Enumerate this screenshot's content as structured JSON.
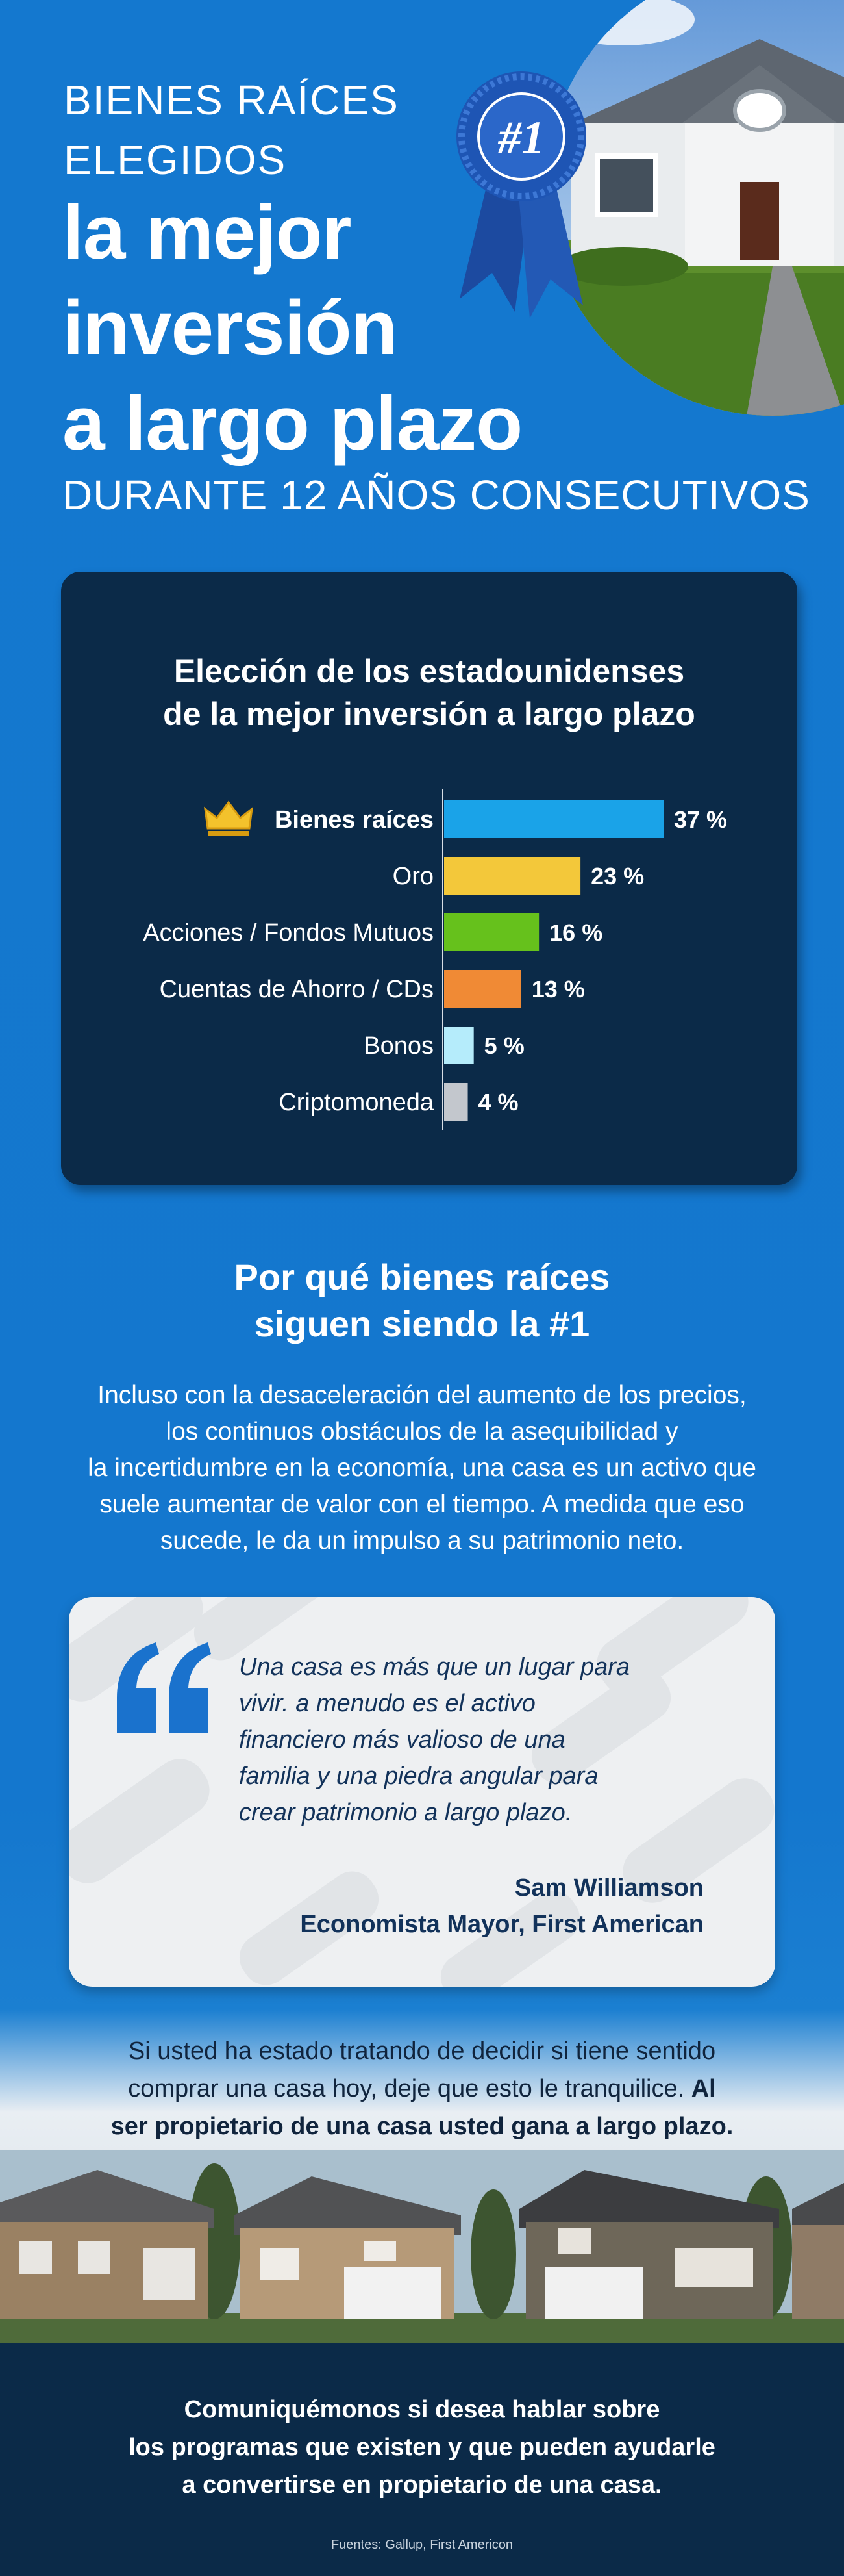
{
  "hero": {
    "kicker_line1": "BIENES RAÍCES",
    "kicker_line2": "ELEGIDOS",
    "title_line1": "la mejor",
    "title_line2": "inversión",
    "title_line3": "a largo plazo",
    "subtitle": "DURANTE 12 AÑOS CONSECUTIVOS",
    "ribbon_text": "#1"
  },
  "chart": {
    "title_line1": "Elección de los estadounidenses",
    "title_line2": "de la mejor inversión a largo plazo"
  },
  "chart_data": {
    "type": "bar",
    "orientation": "horizontal",
    "title": "Elección de los estadounidenses de la mejor inversión a largo plazo",
    "categories": [
      "Bienes raíces",
      "Oro",
      "Acciones / Fondos Mutuos",
      "Cuentas de Ahorro / CDs",
      "Bonos",
      "Criptomoneda"
    ],
    "values": [
      37,
      23,
      16,
      13,
      5,
      4
    ],
    "value_labels": [
      "37 %",
      "23 %",
      "16 %",
      "13 %",
      "5 %",
      "4 %"
    ],
    "colors": [
      "#1aa3e8",
      "#f3c83a",
      "#66c11c",
      "#f08a35",
      "#b5ecfb",
      "#c3c7cd"
    ],
    "highlight_icon": "crown-icon",
    "xlim": [
      0,
      37
    ]
  },
  "why": {
    "title_line1": "Por qué bienes raíces",
    "title_line2": "siguen siendo la #1",
    "body_line1": "Incluso con la desaceleración del aumento de los precios,",
    "body_line2": "los continuos obstáculos de la asequibilidad y",
    "body_line3": "la incertidumbre en la economía, una casa es un activo que",
    "body_line4": "suele aumentar de valor con el tiempo. A medida que eso",
    "body_line5": "sucede, le da un impulso a su patrimonio neto."
  },
  "quote": {
    "line1": "Una casa es más que un lugar para",
    "line2": "vivir. a menudo es el activo",
    "line3": "financiero más valioso de una",
    "line4": "familia y una piedra angular para",
    "line5": "crear patrimonio a largo plazo.",
    "author": "Sam Williamson",
    "role": "Economista Mayor, First American"
  },
  "closing": {
    "line1": "Si usted ha estado tratando de decidir si tiene sentido",
    "line2_plain": "comprar una casa hoy, deje que esto le tranquilice. ",
    "line2_bold": "Al",
    "line3_bold": "ser propietario de una casa usted gana a largo plazo."
  },
  "footer": {
    "cta_line1": "Comuniquémonos si desea hablar sobre",
    "cta_line2": "los programas que existen y que pueden ayudarle",
    "cta_line3": "a convertirse en propietario de una casa.",
    "sources": "Fuentes: Gallup, First Americon"
  },
  "colors": {
    "background_blue": "#1478cf",
    "navy": "#0b2a48",
    "quote_text": "#12325a"
  }
}
